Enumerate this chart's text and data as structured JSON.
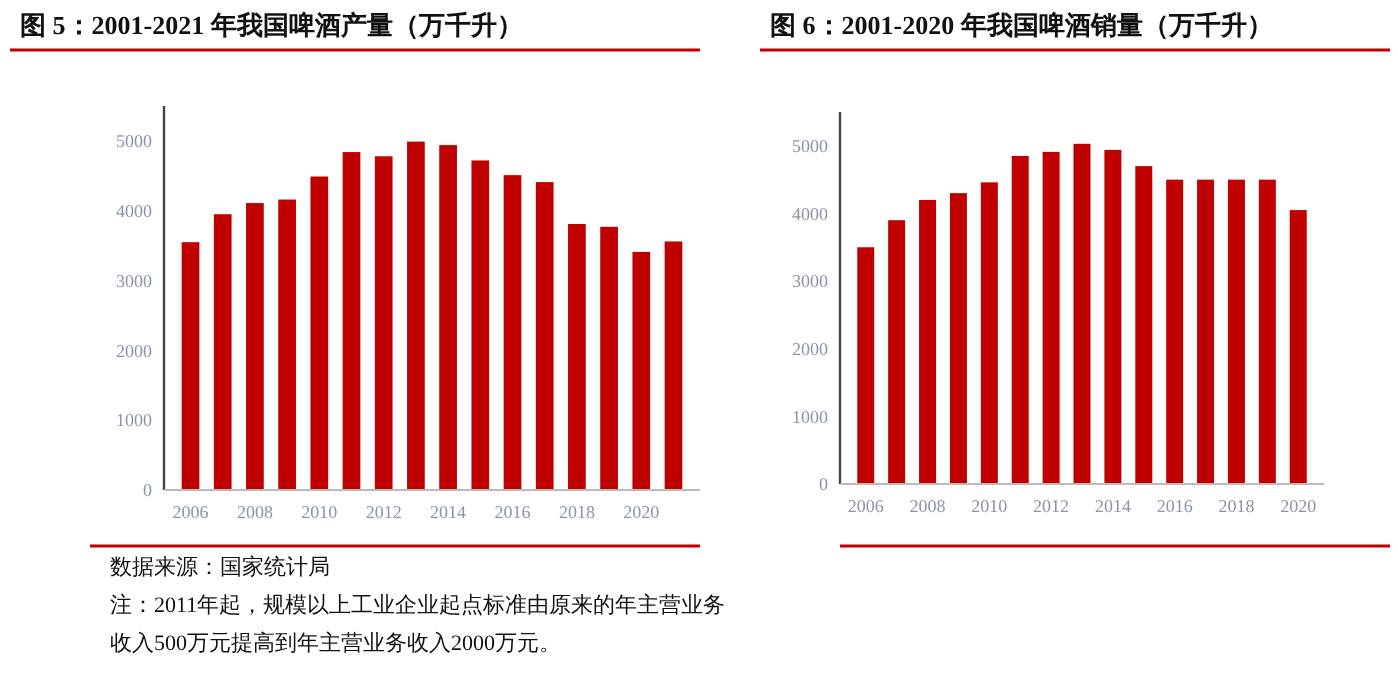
{
  "chart_data": [
    {
      "type": "bar",
      "title": "图 5：2001-2021 年我国啤酒产量（万千升）",
      "categories": [
        "2006",
        null,
        "2008",
        null,
        "2010",
        null,
        "2012",
        null,
        "2014",
        null,
        "2016",
        null,
        "2018",
        null,
        "2020",
        null
      ],
      "values": [
        3550,
        3950,
        4110,
        4160,
        4490,
        4840,
        4780,
        4990,
        4940,
        4720,
        4510,
        4410,
        3810,
        3770,
        3410,
        3560
      ],
      "color": "#c00000",
      "ylim": [
        0,
        5500
      ],
      "yticks": [
        0,
        1000,
        2000,
        3000,
        4000,
        5000
      ],
      "grid": false,
      "annotations": [
        "数据来源：国家统计局",
        "注：2011年起，规模以上工业企业起点标准由原来的年主营业务收入500万元提高到年主营业务收入2000万元。"
      ]
    },
    {
      "type": "bar",
      "title": "图 6：2001-2020 年我国啤酒销量（万千升）",
      "categories": [
        "2006",
        null,
        "2008",
        null,
        "2010",
        null,
        "2012",
        null,
        "2014",
        null,
        "2016",
        null,
        "2018",
        null,
        "2020"
      ],
      "values": [
        3500,
        3900,
        4200,
        4300,
        4460,
        4850,
        4910,
        5030,
        4940,
        4700,
        4500,
        4500,
        4500,
        4500,
        4050
      ],
      "color": "#c00000",
      "ylim": [
        0,
        5500
      ],
      "yticks": [
        0,
        1000,
        2000,
        3000,
        4000,
        5000
      ],
      "grid": false
    }
  ]
}
